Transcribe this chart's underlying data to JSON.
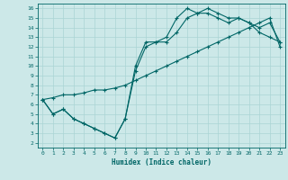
{
  "xlabel": "Humidex (Indice chaleur)",
  "xlim": [
    -0.5,
    23.5
  ],
  "ylim": [
    1.5,
    16.5
  ],
  "xticks": [
    0,
    1,
    2,
    3,
    4,
    5,
    6,
    7,
    8,
    9,
    10,
    11,
    12,
    13,
    14,
    15,
    16,
    17,
    18,
    19,
    20,
    21,
    22,
    23
  ],
  "yticks": [
    2,
    3,
    4,
    5,
    6,
    7,
    8,
    9,
    10,
    11,
    12,
    13,
    14,
    15,
    16
  ],
  "bg_color": "#cce8e8",
  "line_color": "#006666",
  "grid_color": "#aad4d4",
  "line1_x": [
    0,
    1,
    2,
    3,
    4,
    5,
    6,
    7,
    8,
    9,
    10,
    11,
    12,
    13,
    14,
    15,
    16,
    17,
    18,
    19,
    20,
    21,
    22,
    23
  ],
  "line1_y": [
    6.5,
    5.0,
    5.5,
    4.5,
    4.0,
    3.5,
    3.0,
    2.5,
    4.5,
    10.0,
    12.5,
    12.5,
    13.0,
    15.0,
    16.0,
    15.5,
    16.0,
    15.5,
    15.0,
    15.0,
    14.5,
    13.5,
    13.0,
    12.5
  ],
  "line2_x": [
    0,
    1,
    2,
    3,
    4,
    5,
    6,
    7,
    8,
    9,
    10,
    11,
    12,
    13,
    14,
    15,
    16,
    17,
    18,
    19,
    20,
    21,
    22,
    23
  ],
  "line2_y": [
    6.5,
    5.0,
    5.5,
    4.5,
    4.0,
    3.5,
    3.0,
    2.5,
    4.5,
    9.5,
    12.0,
    12.5,
    12.5,
    13.5,
    15.0,
    15.5,
    15.5,
    15.0,
    14.5,
    15.0,
    14.5,
    14.0,
    14.5,
    12.5
  ],
  "line3_x": [
    0,
    1,
    2,
    3,
    4,
    5,
    6,
    7,
    8,
    9,
    10,
    11,
    12,
    13,
    14,
    15,
    16,
    17,
    18,
    19,
    20,
    21,
    22,
    23
  ],
  "line3_y": [
    6.5,
    6.7,
    7.0,
    7.0,
    7.2,
    7.5,
    7.5,
    7.7,
    8.0,
    8.5,
    9.0,
    9.5,
    10.0,
    10.5,
    11.0,
    11.5,
    12.0,
    12.5,
    13.0,
    13.5,
    14.0,
    14.5,
    15.0,
    12.0
  ]
}
